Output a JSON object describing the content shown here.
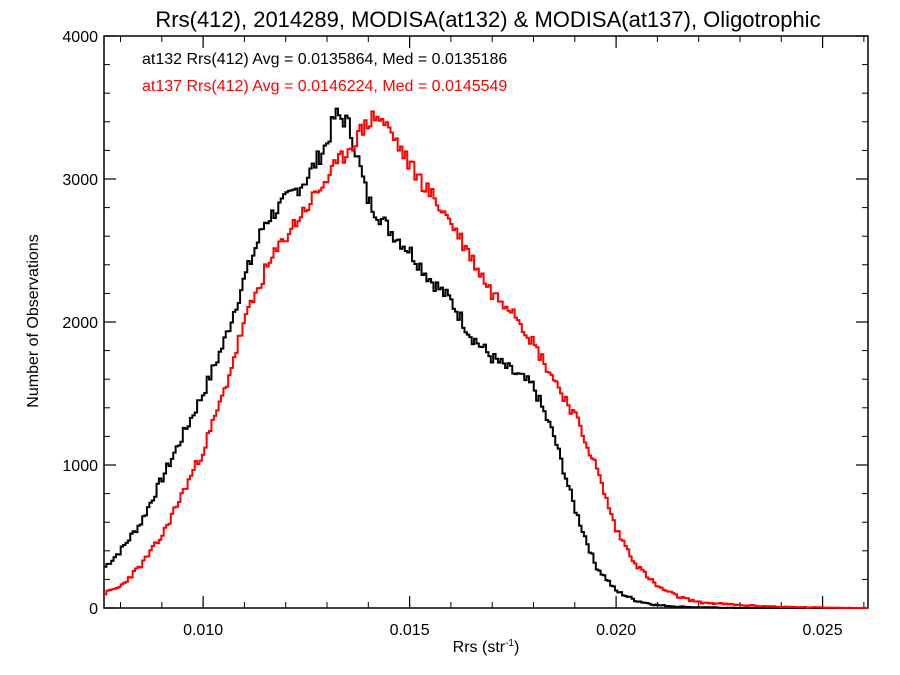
{
  "chart_data": {
    "type": "line",
    "step": true,
    "title": "Rrs(412), 2014289, MODISA(at132) & MODISA(at137), Oligotrophic",
    "xlabel": "Rrs (str",
    "xlabel_sup": "-1",
    "xlabel_end": ")",
    "ylabel": "Number of Observations",
    "xlim": [
      0.0076,
      0.0261
    ],
    "ylim": [
      0,
      4000
    ],
    "xticks": [
      0.01,
      0.015,
      0.02,
      0.025
    ],
    "xtick_labels": [
      "0.010",
      "0.015",
      "0.020",
      "0.025"
    ],
    "yticks": [
      0,
      1000,
      2000,
      3000,
      4000
    ],
    "ytick_labels": [
      "0",
      "1000",
      "2000",
      "3000",
      "4000"
    ],
    "legend_position": "top-left",
    "series": [
      {
        "name": "at132",
        "color": "#000000",
        "stats_text": "at132 Rrs(412) Avg = 0.0135864, Med = 0.0135186",
        "x": [
          0.0076,
          0.008,
          0.0085,
          0.009,
          0.0095,
          0.01,
          0.0105,
          0.011,
          0.0115,
          0.012,
          0.0125,
          0.013,
          0.0132,
          0.0135,
          0.0137,
          0.014,
          0.0145,
          0.015,
          0.0155,
          0.016,
          0.0165,
          0.017,
          0.0175,
          0.018,
          0.0185,
          0.019,
          0.0195,
          0.02,
          0.0205,
          0.021,
          0.0215,
          0.022,
          0.023,
          0.0261
        ],
        "y": [
          280,
          400,
          600,
          900,
          1200,
          1500,
          1850,
          2300,
          2700,
          2850,
          3000,
          3250,
          3450,
          3400,
          3200,
          2850,
          2650,
          2500,
          2300,
          2150,
          1900,
          1750,
          1650,
          1550,
          1200,
          700,
          300,
          120,
          50,
          20,
          10,
          5,
          0,
          0
        ]
      },
      {
        "name": "at137",
        "color": "#ff0000",
        "stats_text": "at137 Rrs(412) Avg = 0.0146224, Med = 0.0145549",
        "x": [
          0.0076,
          0.008,
          0.0085,
          0.009,
          0.0095,
          0.01,
          0.0105,
          0.011,
          0.0115,
          0.012,
          0.0125,
          0.013,
          0.0135,
          0.014,
          0.0142,
          0.0145,
          0.015,
          0.0155,
          0.016,
          0.0165,
          0.017,
          0.0175,
          0.018,
          0.0185,
          0.019,
          0.0195,
          0.02,
          0.0205,
          0.021,
          0.0215,
          0.022,
          0.023,
          0.024,
          0.025,
          0.0261
        ],
        "y": [
          100,
          150,
          300,
          500,
          800,
          1100,
          1500,
          2000,
          2350,
          2600,
          2800,
          3000,
          3200,
          3400,
          3450,
          3350,
          3100,
          2900,
          2700,
          2450,
          2200,
          2100,
          1850,
          1600,
          1350,
          1000,
          550,
          300,
          150,
          80,
          40,
          20,
          8,
          3,
          0
        ]
      }
    ]
  }
}
